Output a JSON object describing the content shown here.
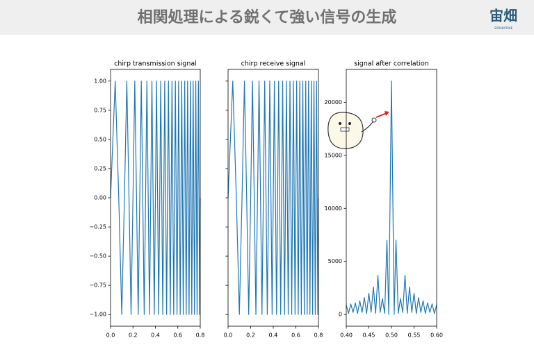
{
  "header": {
    "title": "相関処理による鋭くて強い信号の生成",
    "logo": "宙畑",
    "logo_sub": "SORABATAKE"
  },
  "chart_data": [
    {
      "type": "line",
      "title": "chirp transmission signal",
      "color": "#1f77b4",
      "x": [
        0,
        0.0414,
        0.0732,
        0.1,
        0.1236,
        0.145,
        0.1646,
        0.1828,
        0.2,
        0.2162,
        0.2317,
        0.2464,
        0.2606,
        0.2742,
        0.2873,
        0.3,
        0.3123,
        0.3243,
        0.3359,
        0.3472,
        0.3583,
        0.369,
        0.3796,
        0.3899,
        0.4,
        0.4099,
        0.4196,
        0.4292,
        0.4385,
        0.4477,
        0.4568,
        0.4657,
        0.4745,
        0.4831,
        0.4916,
        0.5,
        0.5083,
        0.5164,
        0.5245,
        0.5325,
        0.5403,
        0.5481,
        0.5557,
        0.5633,
        0.5708,
        0.5782,
        0.5856,
        0.5928,
        0.6,
        0.6071,
        0.6141,
        0.6211,
        0.628,
        0.6348,
        0.6416,
        0.6483,
        0.655,
        0.6616,
        0.6681,
        0.6746,
        0.681,
        0.6874,
        0.6937,
        0.7,
        0.7062,
        0.7124,
        0.7185,
        0.7246,
        0.7307,
        0.7367,
        0.7426,
        0.7485,
        0.7544,
        0.7602,
        0.766,
        0.7718,
        0.7775,
        0.7832,
        0.7888,
        0.7944,
        0.8
      ],
      "values": [
        0,
        1,
        0,
        -1,
        0,
        1,
        0,
        -1,
        0,
        1,
        0,
        -1,
        0,
        1,
        0,
        -1,
        0,
        1,
        0,
        -1,
        0,
        1,
        0,
        -1,
        0,
        1,
        0,
        -1,
        0,
        1,
        0,
        -1,
        0,
        1,
        0,
        -1,
        0,
        1,
        0,
        -1,
        0,
        1,
        0,
        -1,
        0,
        1,
        0,
        -1,
        0,
        1,
        0,
        -1,
        0,
        1,
        0,
        -1,
        0,
        1,
        0,
        -1,
        0,
        1,
        0,
        -1,
        0,
        1,
        0,
        -1,
        0,
        1,
        0,
        -1,
        0,
        1,
        0,
        -1,
        0,
        1,
        0,
        -1,
        0
      ],
      "xlim": [
        0,
        0.8
      ],
      "ylim": [
        -1.1,
        1.1
      ],
      "xticks": [
        {
          "value": 0,
          "label": "0.0"
        },
        0.2,
        0.4,
        0.6,
        0.8
      ],
      "yticks": [
        {
          "value": -1,
          "label": "−1.00"
        },
        {
          "value": -0.75,
          "label": "−0.75"
        },
        {
          "value": -0.5,
          "label": "−0.50"
        },
        {
          "value": -0.25,
          "label": "−0.25"
        },
        {
          "value": 0,
          "label": "0.00"
        },
        {
          "value": 0.25,
          "label": "0.25"
        },
        {
          "value": 0.5,
          "label": "0.50"
        },
        {
          "value": 0.75,
          "label": "0.75"
        },
        {
          "value": 1,
          "label": "1.00"
        }
      ]
    },
    {
      "type": "line",
      "title": "chirp receive signal",
      "color": "#1f77b4",
      "x": [
        0,
        0.0414,
        0.0732,
        0.1,
        0.1236,
        0.145,
        0.1646,
        0.1828,
        0.2,
        0.2162,
        0.2317,
        0.2464,
        0.2606,
        0.2742,
        0.2873,
        0.3,
        0.3123,
        0.3243,
        0.3359,
        0.3472,
        0.3583,
        0.369,
        0.3796,
        0.3899,
        0.4,
        0.4099,
        0.4196,
        0.4292,
        0.4385,
        0.4477,
        0.4568,
        0.4657,
        0.4745,
        0.4831,
        0.4916,
        0.5,
        0.5083,
        0.5164,
        0.5245,
        0.5325,
        0.5403,
        0.5481,
        0.5557,
        0.5633,
        0.5708,
        0.5782,
        0.5856,
        0.5928,
        0.6,
        0.6071,
        0.6141,
        0.6211,
        0.628,
        0.6348,
        0.6416,
        0.6483,
        0.655,
        0.6616,
        0.6681,
        0.6746,
        0.681,
        0.6874,
        0.6937,
        0.7,
        0.7062,
        0.7124,
        0.7185,
        0.7246,
        0.7307,
        0.7367,
        0.7426,
        0.7485,
        0.7544,
        0.7602,
        0.766,
        0.7718,
        0.7775,
        0.7832,
        0.7888,
        0.7944,
        0.8
      ],
      "values": [
        0,
        1,
        0,
        -1,
        0,
        1,
        0,
        -1,
        0,
        1,
        0,
        -1,
        0,
        1,
        0,
        -1,
        0,
        1,
        0,
        -1,
        0,
        1,
        0,
        -1,
        0,
        1,
        0,
        -1,
        0,
        1,
        0,
        -1,
        0,
        1,
        0,
        -1,
        0,
        1,
        0,
        -1,
        0,
        1,
        0,
        -1,
        0,
        1,
        0,
        -1,
        0,
        1,
        0,
        -1,
        0,
        1,
        0,
        -1,
        0,
        1,
        0,
        -1,
        0,
        1,
        0,
        -1,
        0,
        1,
        0,
        -1,
        0,
        1,
        0,
        -1,
        0,
        1,
        0,
        -1,
        0,
        1,
        0,
        -1,
        0
      ],
      "xlim": [
        0,
        0.8
      ],
      "ylim": [
        -1.1,
        1.1
      ],
      "xticks": [
        {
          "value": 0,
          "label": "0.0"
        },
        0.2,
        0.4,
        0.6,
        0.8
      ],
      "yticks": [
        -1,
        -0.75,
        -0.5,
        -0.25,
        0,
        0.25,
        0.5,
        0.75,
        1
      ]
    },
    {
      "type": "line",
      "title": "signal after correlation",
      "color": "#1f77b4",
      "x": [
        0.4,
        0.405,
        0.41,
        0.415,
        0.42,
        0.425,
        0.43,
        0.435,
        0.44,
        0.445,
        0.45,
        0.455,
        0.46,
        0.465,
        0.47,
        0.475,
        0.48,
        0.485,
        0.49,
        0.494,
        0.5,
        0.506,
        0.51,
        0.515,
        0.52,
        0.525,
        0.53,
        0.535,
        0.54,
        0.545,
        0.55,
        0.555,
        0.56,
        0.565,
        0.57,
        0.575,
        0.58,
        0.585,
        0.59,
        0.595,
        0.6
      ],
      "values": [
        900,
        100,
        1000,
        200,
        1100,
        100,
        1300,
        200,
        1600,
        100,
        2000,
        200,
        2600,
        100,
        3700,
        200,
        1500,
        100,
        7000,
        0,
        22000,
        0,
        7000,
        100,
        1500,
        200,
        3700,
        100,
        2600,
        200,
        2000,
        100,
        1600,
        200,
        1300,
        100,
        1100,
        200,
        1000,
        100,
        900
      ],
      "xlim": [
        0.4,
        0.6
      ],
      "ylim": [
        -1100,
        23100
      ],
      "xticks": [
        {
          "value": 0.4,
          "label": "0.40"
        },
        {
          "value": 0.45,
          "label": "0.45"
        },
        {
          "value": 0.5,
          "label": "0.50"
        },
        {
          "value": 0.55,
          "label": "0.55"
        },
        {
          "value": 0.6,
          "label": "0.60"
        }
      ],
      "yticks": [
        0,
        5000,
        10000,
        15000,
        20000
      ]
    }
  ]
}
